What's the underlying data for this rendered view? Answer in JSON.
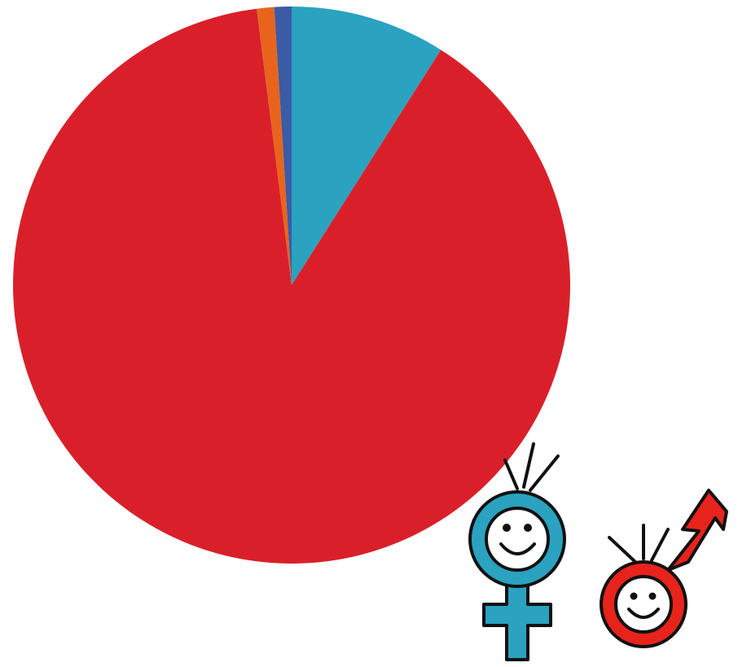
{
  "chart_data": {
    "type": "pie",
    "values": [
      9,
      89,
      1,
      1
    ],
    "colors": [
      "#2aa2c0",
      "#d9202a",
      "#e8641c",
      "#3b5ba5"
    ],
    "start_angle": 0,
    "direction": "clockwise"
  }
}
